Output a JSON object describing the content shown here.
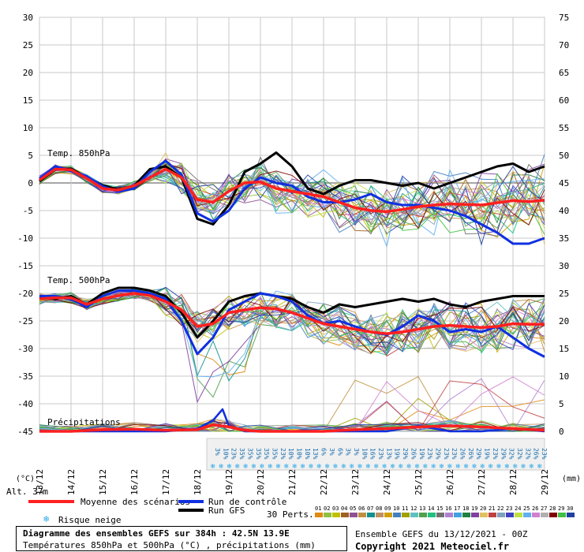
{
  "chart_data": {
    "type": "line",
    "title": "Diagramme des ensembles GEFS sur 384h : 42.5N 13.9E",
    "subtitle": "Températures 850hPa et 500hPa (°C) , précipitations (mm)",
    "left_axis": {
      "label": "(°C)",
      "ticks": [
        30,
        25,
        20,
        15,
        10,
        5,
        0,
        -5,
        -10,
        -15,
        -20,
        -25,
        -30,
        -35,
        -40,
        -45
      ],
      "ylim": [
        -45,
        30
      ]
    },
    "right_axis": {
      "label": "(mm)",
      "ticks": [
        75,
        70,
        65,
        60,
        55,
        50,
        45,
        40,
        35,
        30,
        25,
        20,
        15,
        10,
        5,
        0
      ],
      "ylim": [
        0,
        75
      ]
    },
    "x_dates": [
      "13/12",
      "14/12",
      "15/12",
      "16/12",
      "17/12",
      "18/12",
      "19/12",
      "20/12",
      "21/12",
      "22/12",
      "23/12",
      "24/12",
      "25/12",
      "26/12",
      "27/12",
      "28/12",
      "29/12"
    ],
    "panel_labels": {
      "t850": "Temp. 850hPa",
      "t500": "Temp. 500hPa",
      "precip": "Précipitations"
    },
    "altitude": "Alt. 37m",
    "legend": {
      "mean": "Moyenne des scénarios",
      "control": "Run de contrôle",
      "gfs": "Run GFS",
      "snow": "Risque neige",
      "perts": "30 Perts."
    },
    "snow_risk": [
      "3%",
      "10%",
      "23%",
      "35%",
      "35%",
      "35%",
      "35%",
      "35%",
      "23%",
      "10%",
      "10%",
      "10%",
      "13%",
      "6%",
      "3%",
      "6%",
      "3%",
      "3%",
      "10%",
      "16%",
      "23%",
      "13%",
      "19%",
      "29%",
      "26%",
      "19%",
      "23%",
      "29%",
      "23%",
      "23%",
      "26%",
      "26%",
      "29%",
      "19%",
      "23%",
      "29%",
      "32%",
      "32%",
      "32%",
      "26%",
      "23%"
    ],
    "pert_ids": [
      "01",
      "02",
      "03",
      "04",
      "05",
      "06",
      "07",
      "08",
      "09",
      "10",
      "11",
      "12",
      "13",
      "14",
      "15",
      "16",
      "17",
      "18",
      "19",
      "20",
      "21",
      "22",
      "23",
      "24",
      "25",
      "26",
      "27",
      "28",
      "29",
      "30"
    ],
    "pert_colors": [
      "#e08a10",
      "#90c040",
      "#c0c000",
      "#a06020",
      "#905090",
      "#c09040",
      "#109090",
      "#c09060",
      "#d0a000",
      "#4080c0",
      "#a0a000",
      "#60c0c0",
      "#50a050",
      "#20c080",
      "#707070",
      "#b080d0",
      "#40a0e0",
      "#208040",
      "#8040a0",
      "#e0c060",
      "#c04040",
      "#80a0c0",
      "#4040c0",
      "#c0e040",
      "#60b0f0",
      "#d080d0",
      "#b0b0b0",
      "#800000",
      "#40c040",
      "#2040a0"
    ],
    "series": [
      {
        "name": "Temp. 850hPa moyenne",
        "x": [
          0,
          0.5,
          1,
          1.5,
          2,
          2.5,
          3,
          3.5,
          4,
          4.5,
          5,
          5.5,
          6,
          6.5,
          7,
          7.5,
          8,
          8.5,
          9,
          9.5,
          10,
          10.5,
          11,
          11.5,
          12,
          12.5,
          13,
          13.5,
          14,
          14.5,
          15,
          15.5,
          16
        ],
        "values": [
          0.5,
          2.5,
          2.4,
          0.8,
          -1.0,
          -1.3,
          -0.5,
          1.0,
          2.5,
          1.0,
          -3.0,
          -3.5,
          -1.5,
          0,
          0.2,
          -1.0,
          -1.5,
          -2.0,
          -2.5,
          -3.5,
          -4.5,
          -5.0,
          -5.2,
          -4.8,
          -4.3,
          -4.0,
          -3.8,
          -3.9,
          -4.0,
          -3.6,
          -3.2,
          -3.4,
          -3.1
        ]
      },
      {
        "name": "Temp. 850hPa contrôle",
        "x": [
          0,
          0.5,
          1,
          1.5,
          2,
          2.5,
          3,
          3.5,
          4,
          4.5,
          5,
          5.5,
          6,
          6.5,
          7,
          7.5,
          8,
          8.5,
          9,
          9.5,
          10,
          10.5,
          11,
          11.5,
          12,
          12.5,
          13,
          13.5,
          14,
          14.5,
          15,
          15.5,
          16
        ],
        "values": [
          0.8,
          3.0,
          2.2,
          1.2,
          -0.6,
          -1.6,
          -1.0,
          2.0,
          4.0,
          1.5,
          -5.5,
          -7.0,
          -5.0,
          -1.0,
          1.0,
          0,
          -0.5,
          -2.5,
          -3.5,
          -3.5,
          -3.0,
          -2.0,
          -3.5,
          -4.0,
          -4.0,
          -4.5,
          -5.0,
          -6.0,
          -7.5,
          -9.0,
          -11.0,
          -11.0,
          -10.0
        ]
      },
      {
        "name": "Temp. 850hPa GFS",
        "x": [
          0,
          0.5,
          1,
          1.5,
          2,
          2.5,
          3,
          3.5,
          4,
          4.5,
          5,
          5.5,
          6,
          6.5,
          7,
          7.5,
          8,
          8.5,
          9,
          9.5,
          10,
          10.5,
          11,
          11.5,
          12,
          12.5,
          13,
          13.5,
          14,
          14.5,
          15,
          15.5,
          16
        ],
        "values": [
          0.3,
          2.4,
          2.6,
          1.0,
          -0.4,
          -1.2,
          -0.5,
          2.5,
          3.0,
          1.0,
          -6.5,
          -7.5,
          -4.0,
          2.0,
          3.5,
          5.5,
          3.0,
          -1.0,
          -2.0,
          -0.5,
          0.5,
          0.5,
          0,
          -0.5,
          0,
          -1.0,
          0,
          1.0,
          2.0,
          3.0,
          3.5,
          2.0,
          3.0
        ]
      },
      {
        "name": "Temp. 500hPa moyenne",
        "x": [
          0,
          0.5,
          1,
          1.5,
          2,
          2.5,
          3,
          3.5,
          4,
          4.5,
          5,
          5.5,
          6,
          6.5,
          7,
          7.5,
          8,
          8.5,
          9,
          9.5,
          10,
          10.5,
          11,
          11.5,
          12,
          12.5,
          13,
          13.5,
          14,
          14.5,
          15,
          15.5,
          16
        ],
        "values": [
          -21.0,
          -20.8,
          -20.8,
          -22.0,
          -21.0,
          -20.4,
          -20.0,
          -20.4,
          -21.5,
          -23.0,
          -26.0,
          -25.5,
          -23.5,
          -23.0,
          -22.6,
          -22.8,
          -23.5,
          -24.5,
          -25.5,
          -26.0,
          -26.5,
          -27.0,
          -27.3,
          -27.0,
          -26.5,
          -26.0,
          -25.8,
          -26.0,
          -26.2,
          -26.0,
          -25.5,
          -25.6,
          -25.6
        ]
      },
      {
        "name": "Temp. 500hPa contrôle",
        "x": [
          0,
          0.5,
          1,
          1.5,
          2,
          2.5,
          3,
          3.5,
          4,
          4.5,
          5,
          5.5,
          6,
          6.5,
          7,
          7.5,
          8,
          8.5,
          9,
          9.5,
          10,
          10.5,
          11,
          11.5,
          12,
          12.5,
          13,
          13.5,
          14,
          14.5,
          15,
          15.5,
          16
        ],
        "values": [
          -20.5,
          -20.5,
          -21.0,
          -22.5,
          -20.5,
          -19.5,
          -19.5,
          -20.0,
          -21.0,
          -25.0,
          -31.0,
          -28.0,
          -23.0,
          -21.5,
          -20.0,
          -20.5,
          -21.5,
          -24.0,
          -25.5,
          -25.0,
          -26.0,
          -27.0,
          -27.5,
          -26.0,
          -24.0,
          -25.0,
          -27.0,
          -26.5,
          -27.0,
          -26.0,
          -28.0,
          -30.0,
          -31.5
        ]
      },
      {
        "name": "Temp. 500hPa GFS",
        "x": [
          0,
          0.5,
          1,
          1.5,
          2,
          2.5,
          3,
          3.5,
          4,
          4.5,
          5,
          5.5,
          6,
          6.5,
          7,
          7.5,
          8,
          8.5,
          9,
          9.5,
          10,
          10.5,
          11,
          11.5,
          12,
          12.5,
          13,
          13.5,
          14,
          14.5,
          15,
          15.5,
          16
        ],
        "values": [
          -20.8,
          -21.0,
          -20.5,
          -22.0,
          -20.0,
          -19.0,
          -19.0,
          -19.5,
          -20.5,
          -23.5,
          -28.0,
          -25.0,
          -21.5,
          -20.5,
          -20.0,
          -20.5,
          -21.0,
          -22.5,
          -23.5,
          -22.0,
          -22.5,
          -22.0,
          -21.5,
          -21.0,
          -21.5,
          -21.0,
          -22.0,
          -22.5,
          -21.5,
          -21.0,
          -20.5,
          -20.5,
          -20.5
        ]
      },
      {
        "name": "Précipitations moyenne (mm)",
        "x": [
          0,
          1,
          2,
          3,
          4,
          5,
          5.5,
          6,
          6.5,
          7,
          8,
          9,
          10,
          11,
          12,
          13,
          14,
          15,
          16
        ],
        "values": [
          0,
          0,
          0.3,
          0.4,
          0.2,
          0.3,
          1.2,
          0.8,
          0.2,
          0,
          0,
          0,
          0.3,
          0.5,
          0.8,
          1.0,
          0.8,
          0.5,
          0.2
        ]
      },
      {
        "name": "Précipitations contrôle (mm)",
        "x": [
          0,
          1,
          2,
          3,
          4,
          5,
          5.5,
          5.8,
          6,
          6.5,
          7,
          8,
          9,
          10,
          11,
          12,
          13,
          14,
          15,
          16
        ],
        "values": [
          0,
          0,
          0,
          0,
          0,
          0.5,
          2.0,
          4.0,
          1.0,
          0,
          0,
          0,
          0,
          0,
          0,
          1.0,
          0,
          0,
          0.5,
          0
        ]
      }
    ]
  },
  "footer": {
    "title": "Diagramme des ensembles GEFS sur 384h : 42.5N 13.9E",
    "subtitle": "Températures 850hPa et 500hPa (°C) , précipitations (mm)",
    "ensemble": "Ensemble GEFS du 13/12/2021 - 00Z",
    "copyright": "Copyright 2021 Meteociel.fr"
  },
  "colors": {
    "mean": "#ff2020",
    "control": "#1030e0",
    "gfs": "#000000",
    "grid": "#c8c8c8",
    "snow": "#2aa8e8"
  }
}
